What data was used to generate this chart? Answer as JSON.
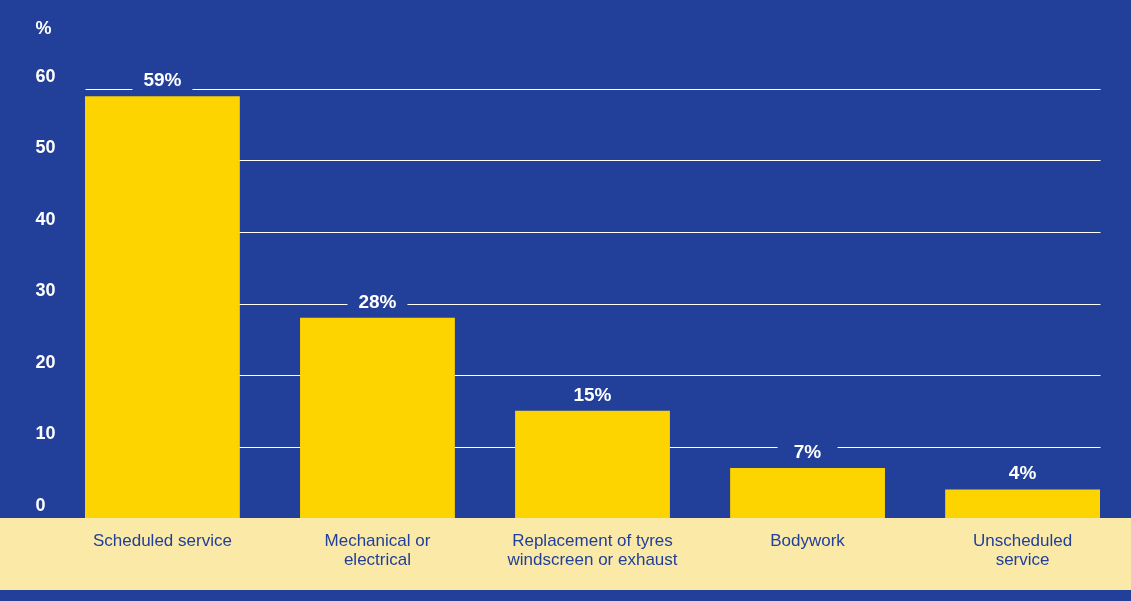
{
  "chart_data": {
    "type": "bar",
    "ylabel": "%",
    "categories": [
      "Scheduled service",
      "Mechanical or\nelectrical",
      "Replacement of tyres\nwindscreen or exhaust",
      "Bodywork",
      "Unscheduled\nservice"
    ],
    "values": [
      59,
      28,
      15,
      7,
      4
    ],
    "value_labels": [
      "59%",
      "28%",
      "15%",
      "7%",
      "4%"
    ],
    "color": "#fdd300",
    "ylim": [
      0,
      60
    ],
    "yticks": [
      0,
      10,
      20,
      30,
      40,
      50,
      60
    ],
    "grid": "y"
  }
}
